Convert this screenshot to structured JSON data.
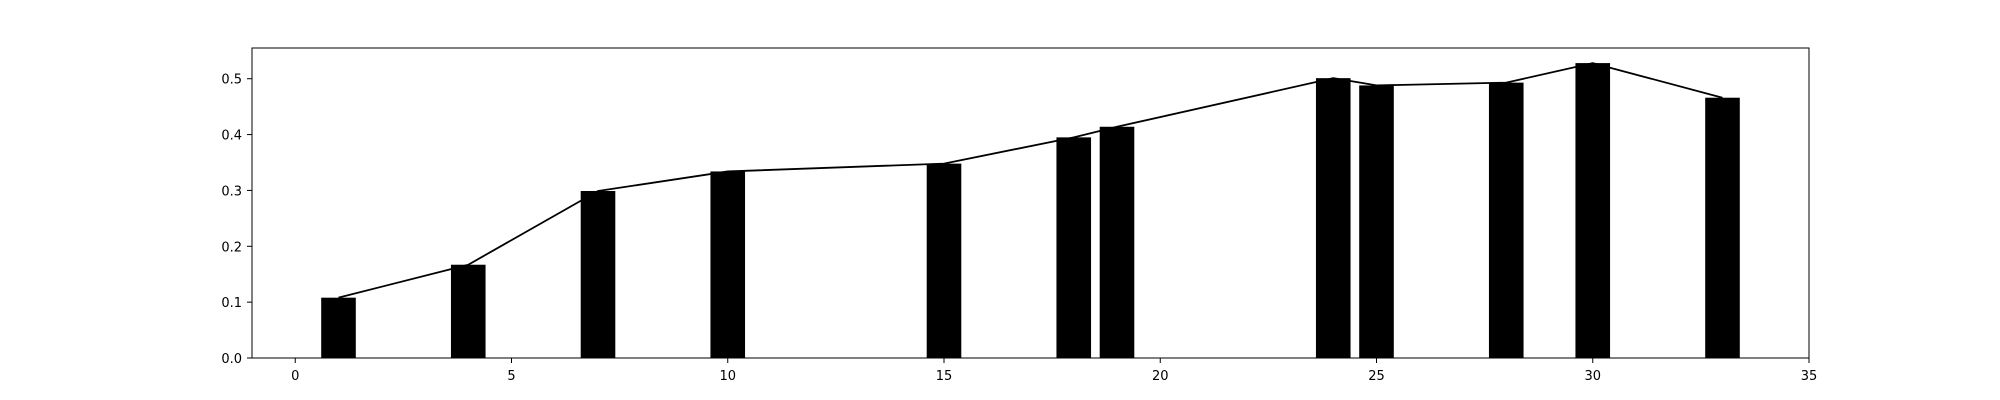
{
  "chart_data": {
    "type": "bar",
    "title": "",
    "xlabel": "",
    "ylabel": "",
    "xlim": [
      -1,
      35
    ],
    "ylim": [
      0,
      0.555
    ],
    "xticks": [
      0,
      5,
      10,
      15,
      20,
      25,
      30,
      35
    ],
    "xtick_labels": [
      "0",
      "5",
      "10",
      "15",
      "20",
      "25",
      "30",
      "35"
    ],
    "yticks": [
      0.0,
      0.1,
      0.2,
      0.3,
      0.4,
      0.5
    ],
    "ytick_labels": [
      "0.0",
      "0.1",
      "0.2",
      "0.3",
      "0.4",
      "0.5"
    ],
    "grid": false,
    "legend": "none",
    "bar_width": 0.8,
    "bar_color": "#000000",
    "line_color": "#000000",
    "series": [
      {
        "type": "bar",
        "x": [
          1,
          4,
          7,
          10,
          15,
          18,
          19,
          24,
          25,
          28,
          30,
          33
        ],
        "values": [
          0.108,
          0.167,
          0.299,
          0.334,
          0.348,
          0.395,
          0.414,
          0.501,
          0.488,
          0.493,
          0.528,
          0.466
        ]
      },
      {
        "type": "line",
        "x": [
          1,
          4,
          7,
          10,
          15,
          18,
          19,
          24,
          25,
          28,
          30,
          33
        ],
        "values": [
          0.108,
          0.167,
          0.299,
          0.334,
          0.348,
          0.395,
          0.414,
          0.501,
          0.488,
          0.493,
          0.528,
          0.466
        ]
      }
    ]
  }
}
